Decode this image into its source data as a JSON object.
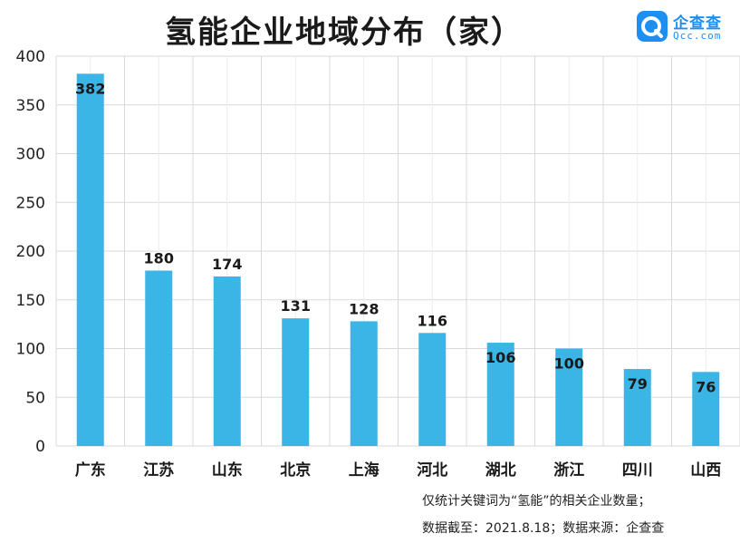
{
  "title": "氢能企业地域分布（家）",
  "logo": {
    "icon": "qcc-logo-icon",
    "name": "企查查",
    "sub": "Qcc.com",
    "color": "#1d8ff2"
  },
  "footnotes": [
    "仅统计关键词为“氢能”的相关企业数量；",
    "数据截至：2021.8.18；数据来源：企查查"
  ],
  "chart_data": {
    "type": "bar",
    "categories": [
      "广东",
      "江苏",
      "山东",
      "北京",
      "上海",
      "河北",
      "湖北",
      "浙江",
      "四川",
      "山西"
    ],
    "values": [
      382,
      180,
      174,
      131,
      128,
      116,
      106,
      100,
      79,
      76
    ],
    "data_labels": [
      "382",
      "180",
      "174",
      "131",
      "128",
      "116",
      "106",
      "100",
      "79",
      "76"
    ],
    "yticks": [
      0,
      50,
      100,
      150,
      200,
      250,
      300,
      350,
      400
    ],
    "ylim": [
      0,
      400
    ],
    "grid": true,
    "bar_color": "#3bb4e6",
    "xlabel": "",
    "ylabel": ""
  }
}
